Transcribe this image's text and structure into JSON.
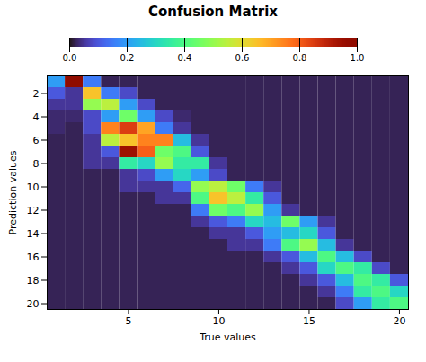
{
  "chart_data": {
    "type": "heatmap",
    "title": "Confusion Matrix",
    "xlabel": "True values",
    "ylabel": "Prediction values",
    "xlim": [
      0.5,
      20.5
    ],
    "ylim": [
      20.5,
      0.5
    ],
    "xticks": [
      5,
      10,
      15,
      20
    ],
    "yticks": [
      2,
      4,
      6,
      8,
      10,
      12,
      14,
      16,
      18,
      20
    ],
    "colorbar_range": [
      0,
      1
    ],
    "colorbar_ticks": [
      {
        "value": 0,
        "label": "0.0"
      },
      0.2,
      0.4,
      0.6,
      0.8,
      {
        "value": 1.0,
        "label": "1.0"
      }
    ],
    "values": [
      [
        0.2,
        1.0,
        0.15,
        0.02,
        0.02,
        0.02,
        0.02,
        0.02,
        0.02,
        0.02,
        0.02,
        0.02,
        0.02,
        0.02,
        0.02,
        0.02,
        0.02,
        0.02,
        0.02,
        0.02
      ],
      [
        0.1,
        0.05,
        0.65,
        0.15,
        0.08,
        0.02,
        0.02,
        0.02,
        0.02,
        0.02,
        0.02,
        0.02,
        0.02,
        0.02,
        0.02,
        0.02,
        0.02,
        0.02,
        0.02,
        0.02
      ],
      [
        0.05,
        0.05,
        0.5,
        0.55,
        0.2,
        0.08,
        0.02,
        0.02,
        0.02,
        0.02,
        0.02,
        0.02,
        0.02,
        0.02,
        0.02,
        0.02,
        0.02,
        0.02,
        0.02,
        0.02
      ],
      [
        0.03,
        0.03,
        0.08,
        0.2,
        0.45,
        0.2,
        0.08,
        0.03,
        0.02,
        0.02,
        0.02,
        0.02,
        0.02,
        0.02,
        0.02,
        0.02,
        0.02,
        0.02,
        0.02,
        0.02
      ],
      [
        0.03,
        0.02,
        0.08,
        0.75,
        0.85,
        0.7,
        0.15,
        0.05,
        0.02,
        0.02,
        0.02,
        0.02,
        0.02,
        0.02,
        0.02,
        0.02,
        0.02,
        0.02,
        0.02,
        0.02
      ],
      [
        0.02,
        0.02,
        0.05,
        0.55,
        0.65,
        0.75,
        0.75,
        0.25,
        0.05,
        0.02,
        0.02,
        0.02,
        0.02,
        0.02,
        0.02,
        0.02,
        0.02,
        0.02,
        0.02,
        0.02
      ],
      [
        0.02,
        0.02,
        0.05,
        0.1,
        0.95,
        0.8,
        0.45,
        0.4,
        0.1,
        0.02,
        0.02,
        0.02,
        0.02,
        0.02,
        0.02,
        0.02,
        0.02,
        0.02,
        0.02,
        0.02
      ],
      [
        0.02,
        0.02,
        0.05,
        0.05,
        0.35,
        0.3,
        0.5,
        0.35,
        0.35,
        0.05,
        0.02,
        0.02,
        0.02,
        0.02,
        0.02,
        0.02,
        0.02,
        0.02,
        0.02,
        0.02
      ],
      [
        0.02,
        0.02,
        0.02,
        0.02,
        0.05,
        0.08,
        0.2,
        0.3,
        0.2,
        0.08,
        0.02,
        0.02,
        0.02,
        0.02,
        0.02,
        0.02,
        0.02,
        0.02,
        0.02,
        0.02
      ],
      [
        0.02,
        0.02,
        0.02,
        0.02,
        0.05,
        0.05,
        0.05,
        0.12,
        0.5,
        0.55,
        0.45,
        0.15,
        0.05,
        0.02,
        0.02,
        0.02,
        0.02,
        0.02,
        0.02,
        0.02
      ],
      [
        0.02,
        0.02,
        0.02,
        0.02,
        0.02,
        0.02,
        0.05,
        0.05,
        0.4,
        0.65,
        0.55,
        0.35,
        0.1,
        0.02,
        0.02,
        0.02,
        0.02,
        0.02,
        0.02,
        0.02
      ],
      [
        0.02,
        0.02,
        0.02,
        0.02,
        0.02,
        0.02,
        0.02,
        0.02,
        0.15,
        0.45,
        0.4,
        0.5,
        0.2,
        0.05,
        0.02,
        0.02,
        0.02,
        0.02,
        0.02,
        0.02
      ],
      [
        0.02,
        0.02,
        0.02,
        0.02,
        0.02,
        0.02,
        0.02,
        0.02,
        0.05,
        0.1,
        0.15,
        0.3,
        0.25,
        0.45,
        0.2,
        0.05,
        0.02,
        0.02,
        0.02,
        0.02
      ],
      [
        0.02,
        0.02,
        0.02,
        0.02,
        0.02,
        0.02,
        0.02,
        0.02,
        0.02,
        0.05,
        0.05,
        0.1,
        0.2,
        0.25,
        0.3,
        0.1,
        0.02,
        0.02,
        0.02,
        0.02
      ],
      [
        0.02,
        0.02,
        0.02,
        0.02,
        0.02,
        0.02,
        0.02,
        0.02,
        0.02,
        0.02,
        0.05,
        0.05,
        0.15,
        0.4,
        0.5,
        0.25,
        0.05,
        0.02,
        0.02,
        0.02
      ],
      [
        0.02,
        0.02,
        0.02,
        0.02,
        0.02,
        0.02,
        0.02,
        0.02,
        0.02,
        0.02,
        0.02,
        0.02,
        0.05,
        0.1,
        0.25,
        0.4,
        0.25,
        0.08,
        0.02,
        0.02
      ],
      [
        0.02,
        0.02,
        0.02,
        0.02,
        0.02,
        0.02,
        0.02,
        0.02,
        0.02,
        0.02,
        0.02,
        0.02,
        0.02,
        0.05,
        0.1,
        0.3,
        0.4,
        0.35,
        0.08,
        0.02
      ],
      [
        0.02,
        0.02,
        0.02,
        0.02,
        0.02,
        0.02,
        0.02,
        0.02,
        0.02,
        0.02,
        0.02,
        0.02,
        0.02,
        0.02,
        0.05,
        0.1,
        0.25,
        0.4,
        0.35,
        0.1
      ],
      [
        0.02,
        0.02,
        0.02,
        0.02,
        0.02,
        0.02,
        0.02,
        0.02,
        0.02,
        0.02,
        0.02,
        0.02,
        0.02,
        0.02,
        0.02,
        0.05,
        0.15,
        0.35,
        0.4,
        0.3
      ],
      [
        0.02,
        0.02,
        0.02,
        0.02,
        0.02,
        0.02,
        0.02,
        0.02,
        0.02,
        0.02,
        0.02,
        0.02,
        0.02,
        0.02,
        0.02,
        0.02,
        0.08,
        0.2,
        0.35,
        0.4
      ]
    ]
  }
}
